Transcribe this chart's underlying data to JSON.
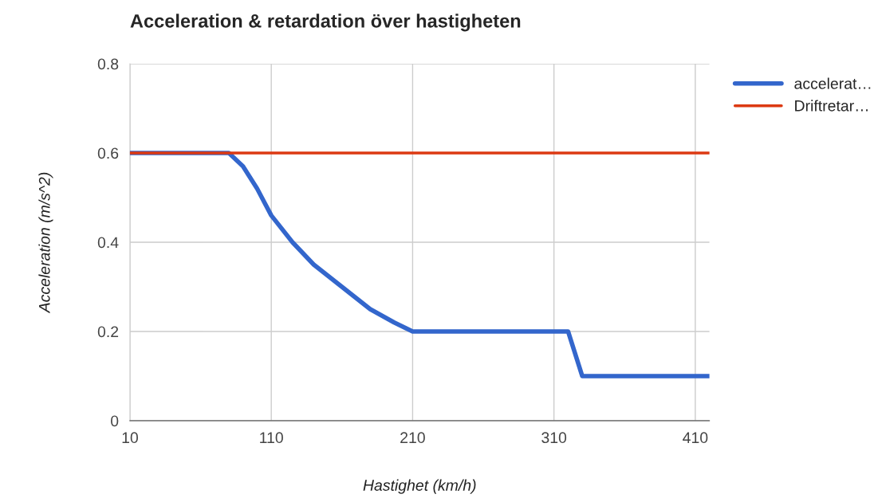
{
  "chart_data": {
    "type": "line",
    "title": "Acceleration & retardation över hastigheten",
    "xlabel": "Hastighet (km/h)",
    "ylabel": "Acceleration (m/s^2)",
    "series": [
      {
        "name": "accelerat…",
        "color": "#3366cc",
        "x": [
          10,
          80,
          90,
          100,
          110,
          125,
          140,
          160,
          180,
          197,
          210,
          320,
          330,
          420
        ],
        "values": [
          0.6,
          0.6,
          0.57,
          0.52,
          0.46,
          0.4,
          0.35,
          0.3,
          0.25,
          0.22,
          0.2,
          0.2,
          0.1,
          0.1
        ]
      },
      {
        "name": "Driftretar…",
        "color": "#dc3912",
        "x": [
          10,
          420
        ],
        "values": [
          0.6,
          0.6
        ]
      }
    ],
    "xlim": [
      10,
      420
    ],
    "xticks": [
      10,
      110,
      210,
      310,
      410
    ],
    "ylim": [
      0,
      0.8
    ],
    "yticks": [
      0,
      0.2,
      0.4,
      0.6,
      0.8
    ],
    "grid": true,
    "legend": "top right",
    "marker": "none",
    "line_style": "solid"
  }
}
